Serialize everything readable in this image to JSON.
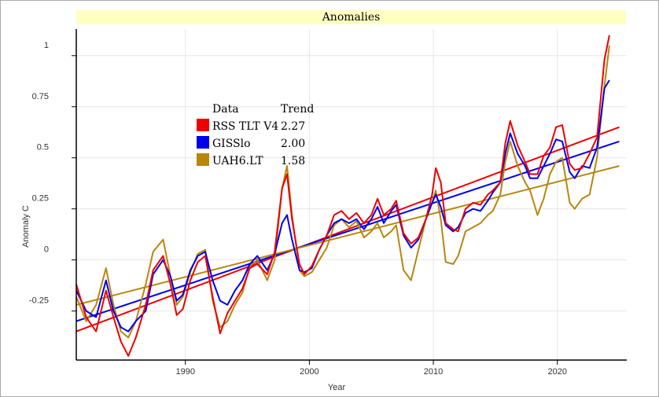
{
  "chart_data": {
    "type": "line",
    "title": "Anomalies",
    "xlabel": "Year",
    "ylabel": "Anomaly C",
    "xlim": [
      1981.2,
      2025.6
    ],
    "ylim": [
      -0.49,
      1.13
    ],
    "x_ticks": [
      1990,
      2000,
      2010,
      2020
    ],
    "x_tick_labels": [
      "1990",
      "2000",
      "2010",
      "2020"
    ],
    "y_ticks": [
      1,
      0.75,
      0.5,
      0.25,
      0,
      -0.25
    ],
    "y_tick_labels": [
      "1",
      "0.75",
      "0.5",
      "0.25",
      "0",
      "-0.25"
    ],
    "grid": true,
    "legend": {
      "placement": "upper-left",
      "header_data": "Data",
      "header_trend": "Trend",
      "entries": [
        {
          "name": "RSS TLT V4",
          "trend": "2.27",
          "color": "#ee0000"
        },
        {
          "name": "GISSlo",
          "trend": "2.00",
          "color": "#0000ee"
        },
        {
          "name": "UAH6.LT",
          "trend": "1.58",
          "color": "#b8860b"
        }
      ]
    },
    "series": [
      {
        "name": "RSS TLT V4",
        "color": "#ee0000",
        "points": [
          [
            1981.2,
            -0.12
          ],
          [
            1982.0,
            -0.28
          ],
          [
            1982.8,
            -0.35
          ],
          [
            1983.6,
            -0.15
          ],
          [
            1984.2,
            -0.28
          ],
          [
            1984.8,
            -0.4
          ],
          [
            1985.4,
            -0.47
          ],
          [
            1986.0,
            -0.38
          ],
          [
            1986.8,
            -0.22
          ],
          [
            1987.4,
            -0.05
          ],
          [
            1988.2,
            0.02
          ],
          [
            1988.8,
            -0.12
          ],
          [
            1989.3,
            -0.27
          ],
          [
            1989.8,
            -0.24
          ],
          [
            1990.4,
            -0.1
          ],
          [
            1991.0,
            -0.01
          ],
          [
            1991.6,
            0.02
          ],
          [
            1992.2,
            -0.18
          ],
          [
            1992.8,
            -0.36
          ],
          [
            1993.4,
            -0.26
          ],
          [
            1994.0,
            -0.2
          ],
          [
            1994.6,
            -0.14
          ],
          [
            1995.2,
            -0.04
          ],
          [
            1995.8,
            -0.02
          ],
          [
            1996.6,
            -0.07
          ],
          [
            1997.2,
            0.04
          ],
          [
            1997.8,
            0.35
          ],
          [
            1998.2,
            0.42
          ],
          [
            1998.6,
            0.2
          ],
          [
            1999.2,
            -0.02
          ],
          [
            1999.6,
            -0.07
          ],
          [
            2000.2,
            -0.03
          ],
          [
            2000.8,
            0.05
          ],
          [
            2001.4,
            0.12
          ],
          [
            2002.0,
            0.22
          ],
          [
            2002.6,
            0.24
          ],
          [
            2003.2,
            0.2
          ],
          [
            2003.8,
            0.23
          ],
          [
            2004.4,
            0.18
          ],
          [
            2005.0,
            0.22
          ],
          [
            2005.5,
            0.3
          ],
          [
            2006.0,
            0.22
          ],
          [
            2006.6,
            0.25
          ],
          [
            2007.0,
            0.29
          ],
          [
            2007.6,
            0.13
          ],
          [
            2008.2,
            0.08
          ],
          [
            2008.8,
            0.11
          ],
          [
            2009.4,
            0.2
          ],
          [
            2009.9,
            0.32
          ],
          [
            2010.2,
            0.45
          ],
          [
            2010.6,
            0.38
          ],
          [
            2011.0,
            0.18
          ],
          [
            2011.6,
            0.15
          ],
          [
            2012.0,
            0.14
          ],
          [
            2012.6,
            0.25
          ],
          [
            2013.2,
            0.28
          ],
          [
            2013.8,
            0.27
          ],
          [
            2014.4,
            0.32
          ],
          [
            2014.8,
            0.34
          ],
          [
            2015.4,
            0.38
          ],
          [
            2015.8,
            0.57
          ],
          [
            2016.2,
            0.68
          ],
          [
            2016.8,
            0.56
          ],
          [
            2017.4,
            0.48
          ],
          [
            2017.8,
            0.42
          ],
          [
            2018.4,
            0.42
          ],
          [
            2018.9,
            0.51
          ],
          [
            2019.4,
            0.55
          ],
          [
            2019.9,
            0.65
          ],
          [
            2020.4,
            0.66
          ],
          [
            2021.0,
            0.47
          ],
          [
            2021.4,
            0.44
          ],
          [
            2022.0,
            0.45
          ],
          [
            2022.6,
            0.52
          ],
          [
            2023.2,
            0.6
          ],
          [
            2023.8,
            0.98
          ],
          [
            2024.2,
            1.1
          ]
        ]
      },
      {
        "name": "GISSlo",
        "color": "#0000ee",
        "points": [
          [
            1981.2,
            -0.15
          ],
          [
            1982.0,
            -0.25
          ],
          [
            1982.8,
            -0.28
          ],
          [
            1983.6,
            -0.1
          ],
          [
            1984.2,
            -0.25
          ],
          [
            1984.8,
            -0.33
          ],
          [
            1985.4,
            -0.35
          ],
          [
            1986.0,
            -0.3
          ],
          [
            1986.8,
            -0.25
          ],
          [
            1987.4,
            -0.07
          ],
          [
            1988.2,
            0.0
          ],
          [
            1988.8,
            -0.08
          ],
          [
            1989.3,
            -0.2
          ],
          [
            1989.8,
            -0.17
          ],
          [
            1990.4,
            -0.05
          ],
          [
            1991.0,
            0.02
          ],
          [
            1991.6,
            0.04
          ],
          [
            1992.2,
            -0.1
          ],
          [
            1992.8,
            -0.2
          ],
          [
            1993.4,
            -0.22
          ],
          [
            1994.0,
            -0.15
          ],
          [
            1994.6,
            -0.1
          ],
          [
            1995.2,
            -0.02
          ],
          [
            1995.8,
            0.02
          ],
          [
            1996.6,
            -0.05
          ],
          [
            1997.2,
            0.03
          ],
          [
            1997.8,
            0.18
          ],
          [
            1998.2,
            0.22
          ],
          [
            1998.6,
            0.1
          ],
          [
            1999.2,
            -0.05
          ],
          [
            1999.6,
            -0.06
          ],
          [
            2000.2,
            -0.04
          ],
          [
            2000.8,
            0.05
          ],
          [
            2001.4,
            0.12
          ],
          [
            2002.0,
            0.18
          ],
          [
            2002.6,
            0.2
          ],
          [
            2003.2,
            0.18
          ],
          [
            2003.8,
            0.2
          ],
          [
            2004.4,
            0.15
          ],
          [
            2005.0,
            0.2
          ],
          [
            2005.5,
            0.26
          ],
          [
            2006.0,
            0.18
          ],
          [
            2006.6,
            0.24
          ],
          [
            2007.0,
            0.27
          ],
          [
            2007.6,
            0.12
          ],
          [
            2008.2,
            0.06
          ],
          [
            2008.8,
            0.1
          ],
          [
            2009.4,
            0.2
          ],
          [
            2009.9,
            0.28
          ],
          [
            2010.2,
            0.32
          ],
          [
            2010.6,
            0.26
          ],
          [
            2011.0,
            0.17
          ],
          [
            2011.6,
            0.14
          ],
          [
            2012.0,
            0.16
          ],
          [
            2012.6,
            0.23
          ],
          [
            2013.2,
            0.25
          ],
          [
            2013.8,
            0.24
          ],
          [
            2014.4,
            0.29
          ],
          [
            2014.8,
            0.33
          ],
          [
            2015.4,
            0.38
          ],
          [
            2015.8,
            0.52
          ],
          [
            2016.2,
            0.62
          ],
          [
            2016.8,
            0.52
          ],
          [
            2017.4,
            0.46
          ],
          [
            2017.8,
            0.4
          ],
          [
            2018.4,
            0.4
          ],
          [
            2018.9,
            0.46
          ],
          [
            2019.4,
            0.52
          ],
          [
            2019.9,
            0.59
          ],
          [
            2020.4,
            0.58
          ],
          [
            2021.0,
            0.43
          ],
          [
            2021.4,
            0.4
          ],
          [
            2022.0,
            0.46
          ],
          [
            2022.6,
            0.45
          ],
          [
            2023.2,
            0.55
          ],
          [
            2023.8,
            0.84
          ],
          [
            2024.2,
            0.88
          ]
        ]
      },
      {
        "name": "UAH6.LT",
        "color": "#b8860b",
        "points": [
          [
            1981.2,
            -0.18
          ],
          [
            1982.0,
            -0.3
          ],
          [
            1982.8,
            -0.22
          ],
          [
            1983.6,
            -0.04
          ],
          [
            1984.2,
            -0.22
          ],
          [
            1984.8,
            -0.35
          ],
          [
            1985.4,
            -0.38
          ],
          [
            1986.0,
            -0.3
          ],
          [
            1986.8,
            -0.12
          ],
          [
            1987.4,
            0.04
          ],
          [
            1988.2,
            0.1
          ],
          [
            1988.8,
            -0.08
          ],
          [
            1989.3,
            -0.22
          ],
          [
            1989.8,
            -0.18
          ],
          [
            1990.4,
            -0.06
          ],
          [
            1991.0,
            0.03
          ],
          [
            1991.6,
            0.05
          ],
          [
            1992.2,
            -0.2
          ],
          [
            1992.8,
            -0.33
          ],
          [
            1993.4,
            -0.3
          ],
          [
            1994.0,
            -0.22
          ],
          [
            1994.6,
            -0.16
          ],
          [
            1995.2,
            -0.03
          ],
          [
            1995.8,
            0.0
          ],
          [
            1996.6,
            -0.1
          ],
          [
            1997.2,
            0.0
          ],
          [
            1997.8,
            0.35
          ],
          [
            1998.2,
            0.46
          ],
          [
            1998.6,
            0.22
          ],
          [
            1999.2,
            -0.05
          ],
          [
            1999.6,
            -0.08
          ],
          [
            2000.2,
            -0.06
          ],
          [
            2000.8,
            0.0
          ],
          [
            2001.4,
            0.06
          ],
          [
            2002.0,
            0.17
          ],
          [
            2002.6,
            0.2
          ],
          [
            2003.2,
            0.16
          ],
          [
            2003.8,
            0.19
          ],
          [
            2004.4,
            0.11
          ],
          [
            2005.0,
            0.14
          ],
          [
            2005.5,
            0.18
          ],
          [
            2006.0,
            0.11
          ],
          [
            2006.6,
            0.14
          ],
          [
            2007.0,
            0.17
          ],
          [
            2007.6,
            -0.05
          ],
          [
            2008.2,
            -0.1
          ],
          [
            2008.8,
            0.05
          ],
          [
            2009.4,
            0.2
          ],
          [
            2009.9,
            0.28
          ],
          [
            2010.2,
            0.34
          ],
          [
            2010.6,
            0.2
          ],
          [
            2011.0,
            -0.01
          ],
          [
            2011.6,
            -0.02
          ],
          [
            2012.0,
            0.02
          ],
          [
            2012.6,
            0.14
          ],
          [
            2013.2,
            0.16
          ],
          [
            2013.8,
            0.18
          ],
          [
            2014.4,
            0.22
          ],
          [
            2014.8,
            0.24
          ],
          [
            2015.4,
            0.32
          ],
          [
            2015.8,
            0.48
          ],
          [
            2016.2,
            0.58
          ],
          [
            2016.8,
            0.46
          ],
          [
            2017.4,
            0.38
          ],
          [
            2017.8,
            0.34
          ],
          [
            2018.4,
            0.22
          ],
          [
            2018.9,
            0.3
          ],
          [
            2019.4,
            0.42
          ],
          [
            2019.9,
            0.48
          ],
          [
            2020.4,
            0.5
          ],
          [
            2021.0,
            0.28
          ],
          [
            2021.4,
            0.25
          ],
          [
            2022.0,
            0.3
          ],
          [
            2022.6,
            0.32
          ],
          [
            2023.2,
            0.5
          ],
          [
            2023.8,
            0.85
          ],
          [
            2024.2,
            1.05
          ]
        ]
      }
    ],
    "trends": [
      {
        "name": "RSS TLT V4",
        "color": "#ee0000",
        "points": [
          [
            1981.2,
            -0.35
          ],
          [
            2025.0,
            0.65
          ]
        ]
      },
      {
        "name": "GISSlo",
        "color": "#0000ee",
        "points": [
          [
            1981.2,
            -0.3
          ],
          [
            2025.0,
            0.58
          ]
        ]
      },
      {
        "name": "UAH6.LT",
        "color": "#b8860b",
        "points": [
          [
            1981.2,
            -0.22
          ],
          [
            2025.0,
            0.46
          ]
        ]
      }
    ]
  }
}
